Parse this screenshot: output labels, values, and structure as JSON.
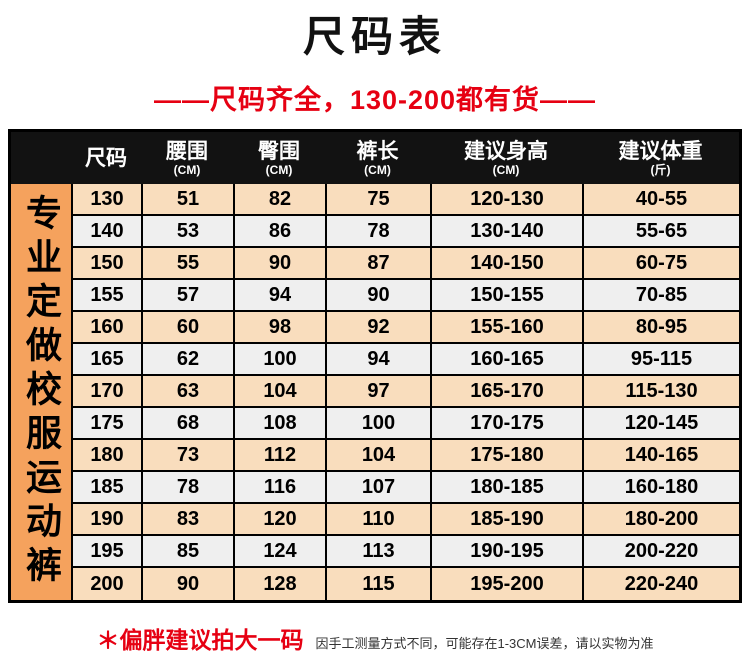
{
  "page": {
    "title": "尺码表",
    "subtitle": "——尺码齐全，130-200都有货——",
    "side_label": "专业定做校服运动裤",
    "footer_bold": "＊偏胖建议拍大一码",
    "footer_small": "因手工测量方式不同，可能存在1-3CM误差，请以实物为准"
  },
  "chart_data": {
    "type": "table",
    "title": "尺码表",
    "columns": [
      {
        "label": "尺码",
        "unit": ""
      },
      {
        "label": "腰围",
        "unit": "(CM)"
      },
      {
        "label": "臀围",
        "unit": "(CM)"
      },
      {
        "label": "裤长",
        "unit": "(CM)"
      },
      {
        "label": "建议身高",
        "unit": "(CM)"
      },
      {
        "label": "建议体重",
        "unit": "(斤)"
      }
    ],
    "rows": [
      [
        "130",
        "51",
        "82",
        "75",
        "120-130",
        "40-55"
      ],
      [
        "140",
        "53",
        "86",
        "78",
        "130-140",
        "55-65"
      ],
      [
        "150",
        "55",
        "90",
        "87",
        "140-150",
        "60-75"
      ],
      [
        "155",
        "57",
        "94",
        "90",
        "150-155",
        "70-85"
      ],
      [
        "160",
        "60",
        "98",
        "92",
        "155-160",
        "80-95"
      ],
      [
        "165",
        "62",
        "100",
        "94",
        "160-165",
        "95-115"
      ],
      [
        "170",
        "63",
        "104",
        "97",
        "165-170",
        "115-130"
      ],
      [
        "175",
        "68",
        "108",
        "100",
        "170-175",
        "120-145"
      ],
      [
        "180",
        "73",
        "112",
        "104",
        "175-180",
        "140-165"
      ],
      [
        "185",
        "78",
        "116",
        "107",
        "180-185",
        "160-180"
      ],
      [
        "190",
        "83",
        "120",
        "110",
        "185-190",
        "180-200"
      ],
      [
        "195",
        "85",
        "124",
        "113",
        "190-195",
        "200-220"
      ],
      [
        "200",
        "90",
        "128",
        "115",
        "195-200",
        "220-240"
      ]
    ]
  },
  "colors": {
    "accent_red": "#e60012",
    "header_bg": "#121212",
    "header_text": "#ffffff",
    "sidebar_bg": "#f5a25d",
    "row_odd_bg": "#f9ddbd",
    "row_even_bg": "#efefef",
    "border": "#000000"
  }
}
